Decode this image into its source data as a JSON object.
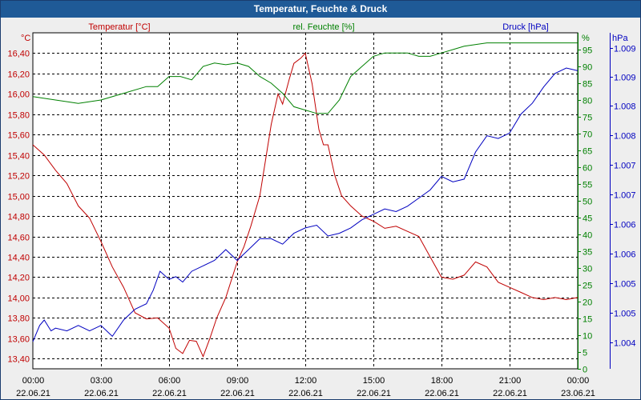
{
  "window": {
    "title": "Temperatur, Feuchte & Druck"
  },
  "colors": {
    "temperature": "#c00000",
    "humidity": "#008000",
    "pressure": "#0000c0",
    "grid": "#000000",
    "background": "#eeeeee",
    "title_bar": "#1f5a97"
  },
  "chart_data": {
    "type": "line",
    "title": "Temperatur, Feuchte & Druck",
    "grid": true,
    "x_ticks": [
      {
        "time": "00:00",
        "date": "22.06.21"
      },
      {
        "time": "03:00",
        "date": "22.06.21"
      },
      {
        "time": "06:00",
        "date": "22.06.21"
      },
      {
        "time": "09:00",
        "date": "22.06.21"
      },
      {
        "time": "12:00",
        "date": "22.06.21"
      },
      {
        "time": "15:00",
        "date": "22.06.21"
      },
      {
        "time": "18:00",
        "date": "22.06.21"
      },
      {
        "time": "21:00",
        "date": "22.06.21"
      },
      {
        "time": "00:00",
        "date": "23.06.21"
      }
    ],
    "xlim_hours": [
      0,
      24
    ],
    "axes": {
      "temperature": {
        "label": "Temperatur [°C]",
        "unit": "°C",
        "ylim": [
          13.3,
          16.6
        ],
        "ticks": [
          "16,40",
          "16,20",
          "16,00",
          "15,80",
          "15,60",
          "15,40",
          "15,20",
          "15,00",
          "14,80",
          "14,60",
          "14,40",
          "14,20",
          "14,00",
          "13,80",
          "13,60",
          "13,40"
        ]
      },
      "humidity": {
        "label": "rel. Feuchte [%]",
        "unit": "%",
        "ylim": [
          0,
          100
        ],
        "ticks": [
          "95",
          "90",
          "85",
          "80",
          "75",
          "70",
          "65",
          "60",
          "55",
          "50",
          "45",
          "40",
          "35",
          "30",
          "25",
          "20",
          "15",
          "10",
          "5",
          "0"
        ]
      },
      "pressure": {
        "label": "Druck [hPa]",
        "unit": "hPa",
        "ylim": [
          1003.4,
          1009.6
        ],
        "ticks": [
          "1.009",
          "1.009",
          "1.008",
          "1.008",
          "1.007",
          "1.007",
          "1.006",
          "1.006",
          "1.005",
          "1.005",
          "1.004"
        ]
      }
    },
    "series": [
      {
        "name": "Temperatur",
        "axis": "temperature",
        "x": [
          0,
          0.5,
          1,
          1.5,
          2,
          2.5,
          3,
          3.5,
          4,
          4.5,
          5,
          5.5,
          6,
          6.3,
          6.6,
          6.9,
          7.2,
          7.5,
          7.8,
          8.1,
          8.5,
          9,
          9.3,
          9.6,
          10,
          10.5,
          10.8,
          11,
          11.3,
          11.5,
          11.8,
          12,
          12.3,
          12.6,
          12.8,
          13,
          13.3,
          13.6,
          14,
          14.5,
          15,
          15.5,
          16,
          16.5,
          17,
          17.5,
          18,
          18.5,
          19,
          19.5,
          20,
          20.5,
          21,
          21.5,
          22,
          22.5,
          23,
          23.5,
          24
        ],
        "y": [
          15.5,
          15.4,
          15.25,
          15.12,
          14.9,
          14.78,
          14.55,
          14.3,
          14.1,
          13.85,
          13.79,
          13.8,
          13.7,
          13.5,
          13.45,
          13.58,
          13.57,
          13.42,
          13.6,
          13.8,
          14.0,
          14.35,
          14.5,
          14.7,
          15.0,
          15.7,
          16.0,
          15.9,
          16.15,
          16.3,
          16.35,
          16.4,
          16.1,
          15.65,
          15.5,
          15.5,
          15.2,
          15.0,
          14.9,
          14.8,
          14.75,
          14.68,
          14.7,
          14.65,
          14.6,
          14.4,
          14.2,
          14.18,
          14.22,
          14.35,
          14.3,
          14.15,
          14.1,
          14.05,
          14.0,
          13.98,
          14.0,
          13.98,
          14.0
        ]
      },
      {
        "name": "rel. Feuchte",
        "axis": "humidity",
        "x": [
          0,
          1,
          2,
          3,
          4,
          5,
          5.5,
          6,
          6.5,
          7,
          7.5,
          8,
          8.5,
          9,
          9.5,
          10,
          10.5,
          11,
          11.5,
          12,
          12.5,
          13,
          13.5,
          14,
          14.5,
          15,
          15.5,
          16,
          16.5,
          17,
          17.5,
          18,
          18.5,
          19,
          20,
          21,
          22,
          23,
          24
        ],
        "y": [
          81,
          80,
          79,
          80,
          82,
          84,
          84,
          87,
          87,
          86,
          90,
          91,
          90.5,
          91,
          90,
          87,
          85,
          82,
          78,
          77,
          76,
          76,
          80,
          87,
          90,
          93,
          94,
          94,
          94,
          93,
          93,
          94,
          95,
          96,
          97,
          97,
          97,
          97,
          97
        ]
      },
      {
        "name": "Druck",
        "axis": "pressure",
        "x": [
          0,
          0.3,
          0.5,
          0.8,
          1,
          1.5,
          2,
          2.5,
          3,
          3.5,
          4,
          4.5,
          5,
          5.3,
          5.6,
          6,
          6.3,
          6.6,
          7,
          7.5,
          8,
          8.5,
          9,
          9.5,
          10,
          10.5,
          11,
          11.5,
          12,
          12.5,
          13,
          13.5,
          14,
          14.5,
          15,
          15.5,
          16,
          16.5,
          17,
          17.5,
          18,
          18.5,
          19,
          19.5,
          20,
          20.5,
          21,
          21.5,
          22,
          22.5,
          23,
          23.5,
          24
        ],
        "y": [
          1003.9,
          1004.2,
          1004.3,
          1004.1,
          1004.15,
          1004.1,
          1004.2,
          1004.1,
          1004.2,
          1004.0,
          1004.3,
          1004.5,
          1004.6,
          1004.85,
          1005.2,
          1005.05,
          1005.1,
          1005.0,
          1005.2,
          1005.3,
          1005.4,
          1005.6,
          1005.4,
          1005.6,
          1005.8,
          1005.8,
          1005.7,
          1005.9,
          1006.0,
          1006.05,
          1005.85,
          1005.9,
          1006.0,
          1006.15,
          1006.25,
          1006.35,
          1006.3,
          1006.4,
          1006.55,
          1006.7,
          1006.95,
          1006.85,
          1006.9,
          1007.4,
          1007.7,
          1007.65,
          1007.75,
          1008.1,
          1008.3,
          1008.6,
          1008.85,
          1008.95,
          1008.9
        ]
      }
    ]
  }
}
